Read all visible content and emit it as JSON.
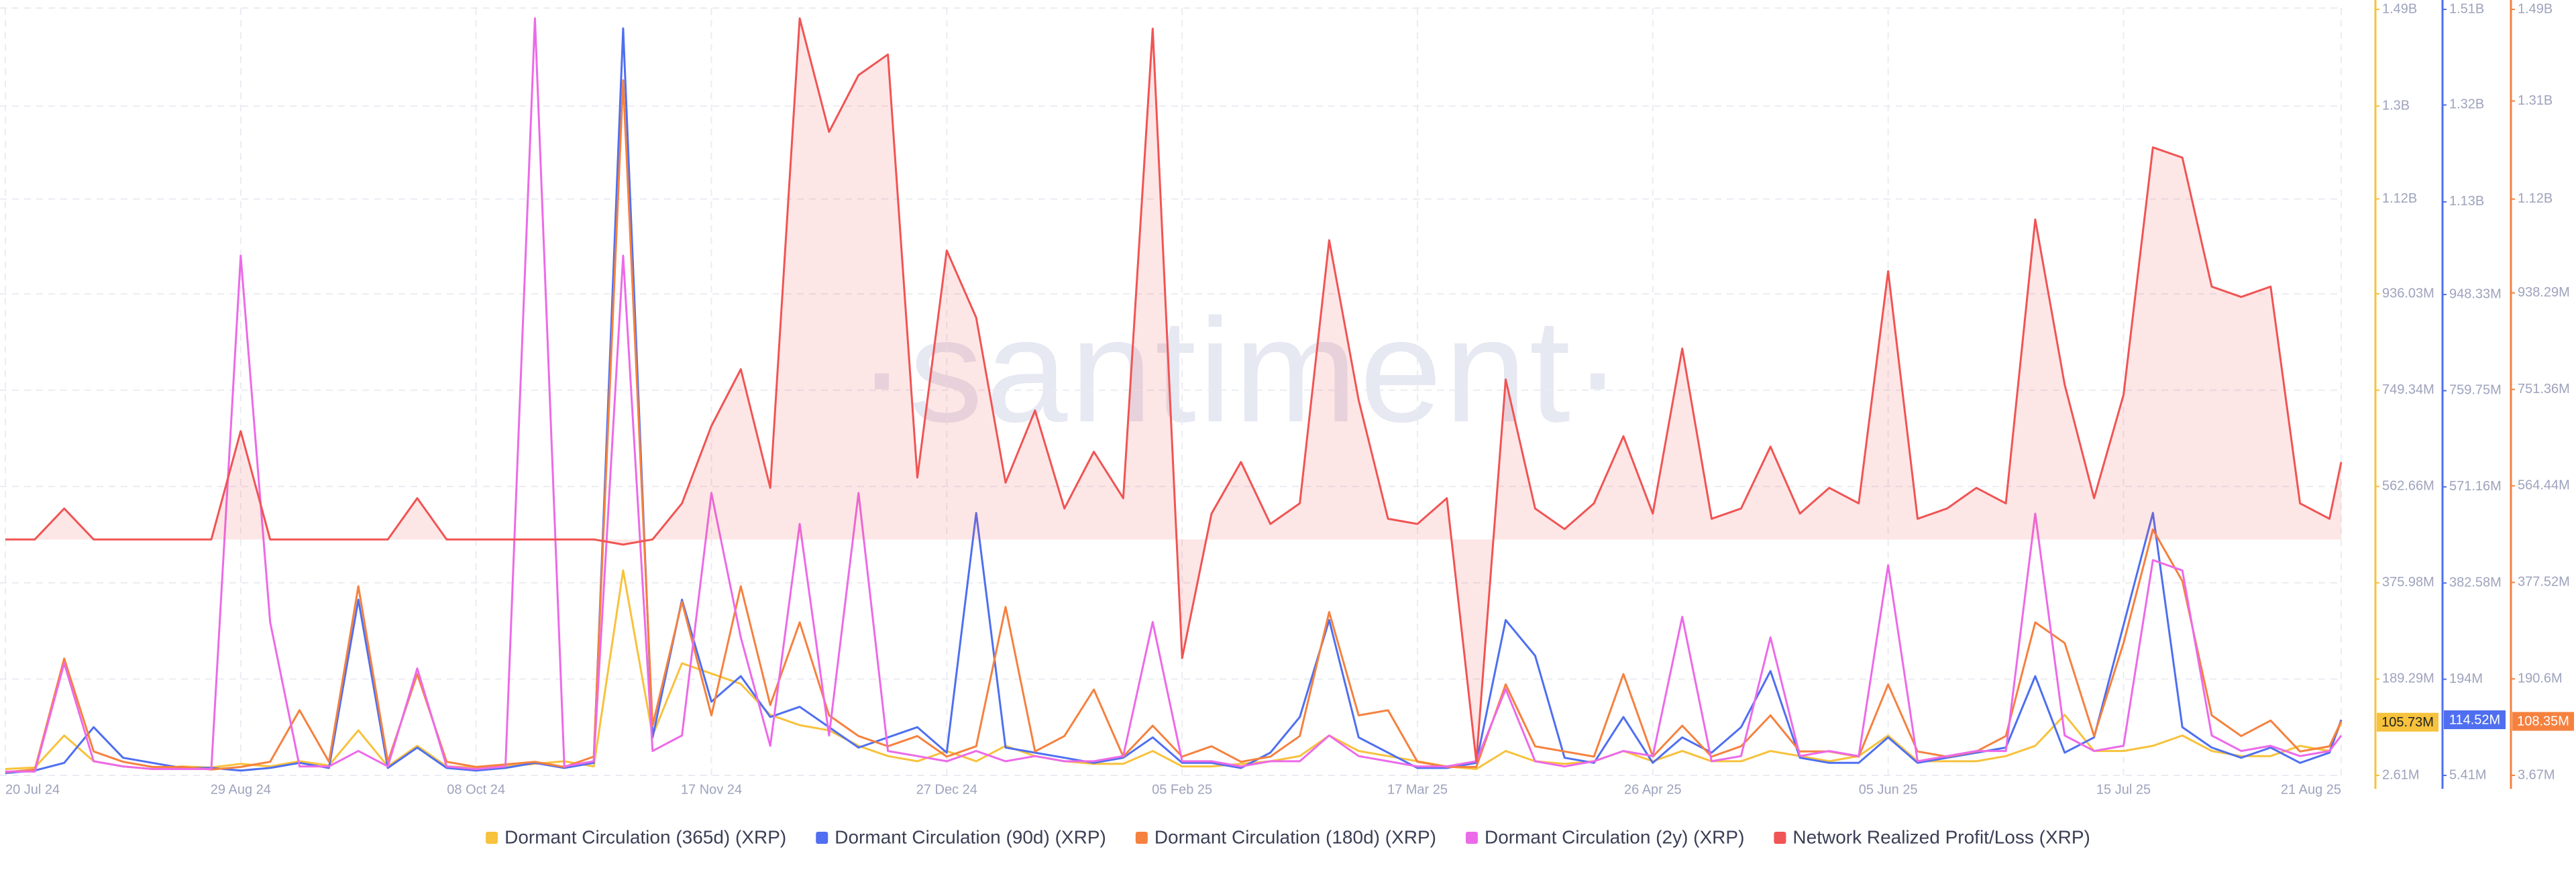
{
  "chart_data": {
    "type": "line",
    "watermark": "·santiment·",
    "grid": true,
    "x": [
      "2024-07-20",
      "2024-07-25",
      "2024-07-30",
      "2024-08-04",
      "2024-08-09",
      "2024-08-14",
      "2024-08-19",
      "2024-08-24",
      "2024-08-29",
      "2024-09-03",
      "2024-09-08",
      "2024-09-13",
      "2024-09-18",
      "2024-09-23",
      "2024-09-28",
      "2024-10-03",
      "2024-10-08",
      "2024-10-13",
      "2024-10-18",
      "2024-10-23",
      "2024-10-28",
      "2024-11-02",
      "2024-11-07",
      "2024-11-12",
      "2024-11-17",
      "2024-11-22",
      "2024-11-27",
      "2024-12-02",
      "2024-12-07",
      "2024-12-12",
      "2024-12-17",
      "2024-12-22",
      "2024-12-27",
      "2025-01-01",
      "2025-01-06",
      "2025-01-11",
      "2025-01-16",
      "2025-01-21",
      "2025-01-26",
      "2025-01-31",
      "2025-02-05",
      "2025-02-10",
      "2025-02-15",
      "2025-02-20",
      "2025-02-25",
      "2025-03-02",
      "2025-03-07",
      "2025-03-12",
      "2025-03-17",
      "2025-03-22",
      "2025-03-27",
      "2025-04-01",
      "2025-04-06",
      "2025-04-11",
      "2025-04-16",
      "2025-04-21",
      "2025-04-26",
      "2025-05-01",
      "2025-05-06",
      "2025-05-11",
      "2025-05-16",
      "2025-05-21",
      "2025-05-26",
      "2025-05-31",
      "2025-06-05",
      "2025-06-10",
      "2025-06-15",
      "2025-06-20",
      "2025-06-25",
      "2025-06-30",
      "2025-07-05",
      "2025-07-10",
      "2025-07-15",
      "2025-07-20",
      "2025-07-25",
      "2025-07-30",
      "2025-08-04",
      "2025-08-09",
      "2025-08-14",
      "2025-08-19",
      "2025-08-21"
    ],
    "xlim": [
      "2024-07-20",
      "2025-08-21"
    ],
    "xticks": [
      {
        "value": "2024-07-20",
        "label": "20 Jul 24"
      },
      {
        "value": "2024-08-29",
        "label": "29 Aug 24"
      },
      {
        "value": "2024-10-08",
        "label": "08 Oct 24"
      },
      {
        "value": "2024-11-17",
        "label": "17 Nov 24"
      },
      {
        "value": "2024-12-27",
        "label": "27 Dec 24"
      },
      {
        "value": "2025-02-05",
        "label": "05 Feb 25"
      },
      {
        "value": "2025-03-17",
        "label": "17 Mar 25"
      },
      {
        "value": "2025-04-26",
        "label": "26 Apr 25"
      },
      {
        "value": "2025-06-05",
        "label": "05 Jun 25"
      },
      {
        "value": "2025-07-15",
        "label": "15 Jul 25"
      },
      {
        "value": "2025-08-21",
        "label": "21 Aug 25"
      }
    ],
    "ylim": [
      2610000,
      1490000000
    ],
    "yticks": [
      {
        "value": 2610000,
        "label": "2.61M"
      },
      {
        "value": 189290000,
        "label": "189.29M"
      },
      {
        "value": 375980000,
        "label": "375.98M"
      },
      {
        "value": 562660000,
        "label": "562.66M"
      },
      {
        "value": 749340000,
        "label": "749.34M"
      },
      {
        "value": 936030000,
        "label": "936.03M"
      },
      {
        "value": 1120000000,
        "label": "1.12B"
      },
      {
        "value": 1300000000,
        "label": "1.3B"
      },
      {
        "value": 1490000000,
        "label": "1.49B"
      }
    ],
    "y2lim": [
      5410000,
      1510000000
    ],
    "y2ticks": [
      {
        "value": 5410000,
        "label": "5.41M"
      },
      {
        "value": 194000000,
        "label": "194M"
      },
      {
        "value": 382580000,
        "label": "382.58M"
      },
      {
        "value": 571160000,
        "label": "571.16M"
      },
      {
        "value": 759750000,
        "label": "759.75M"
      },
      {
        "value": 948330000,
        "label": "948.33M"
      },
      {
        "value": 1130000000,
        "label": "1.13B"
      },
      {
        "value": 1320000000,
        "label": "1.32B"
      },
      {
        "value": 1510000000,
        "label": "1.51B"
      }
    ],
    "y3lim": [
      3670000,
      1490000000
    ],
    "y3ticks": [
      {
        "value": 3670000,
        "label": "3.67M"
      },
      {
        "value": 190600000,
        "label": "190.6M"
      },
      {
        "value": 377520000,
        "label": "377.52M"
      },
      {
        "value": 564440000,
        "label": "564.44M"
      },
      {
        "value": 751360000,
        "label": "751.36M"
      },
      {
        "value": 938290000,
        "label": "938.29M"
      },
      {
        "value": 1120000000,
        "label": "1.12B"
      },
      {
        "value": 1310000000,
        "label": "1.31B"
      },
      {
        "value": 1490000000,
        "label": "1.49B"
      }
    ],
    "series": [
      {
        "name": "Dormant Circulation (365d) (XRP)",
        "color": "#f7c23c",
        "axis": "y",
        "last_value_label": "105.73M",
        "values": [
          15000000.0,
          18000000.0,
          80000000.0,
          30000000.0,
          20000000.0,
          15000000.0,
          20000000.0,
          18000000.0,
          25000000.0,
          20000000.0,
          30000000.0,
          22000000.0,
          90000000.0,
          20000000.0,
          60000000.0,
          20000000.0,
          18000000.0,
          20000000.0,
          25000000.0,
          30000000.0,
          20000000.0,
          400000000.0,
          80000000.0,
          220000000.0,
          200000000.0,
          180000000.0,
          120000000.0,
          100000000.0,
          90000000.0,
          60000000.0,
          40000000.0,
          30000000.0,
          50000000.0,
          30000000.0,
          60000000.0,
          40000000.0,
          30000000.0,
          25000000.0,
          25000000.0,
          50000000.0,
          20000000.0,
          20000000.0,
          25000000.0,
          30000000.0,
          40000000.0,
          80000000.0,
          50000000.0,
          40000000.0,
          30000000.0,
          20000000.0,
          15000000.0,
          50000000.0,
          30000000.0,
          25000000.0,
          30000000.0,
          50000000.0,
          30000000.0,
          50000000.0,
          30000000.0,
          30000000.0,
          50000000.0,
          40000000.0,
          30000000.0,
          40000000.0,
          80000000.0,
          30000000.0,
          30000000.0,
          30000000.0,
          40000000.0,
          60000000.0,
          120000000.0,
          50000000.0,
          50000000.0,
          60000000.0,
          80000000.0,
          50000000.0,
          40000000.0,
          40000000.0,
          60000000.0,
          50000000.0,
          105730000.0
        ]
      },
      {
        "name": "Dormant Circulation (90d) (XRP)",
        "color": "#4f6ff0",
        "axis": "y2",
        "last_value_label": "114.52M",
        "values": [
          10000000.0,
          15000000.0,
          30000000.0,
          100000000.0,
          40000000.0,
          30000000.0,
          20000000.0,
          20000000.0,
          15000000.0,
          20000000.0,
          30000000.0,
          20000000.0,
          350000000.0,
          20000000.0,
          60000000.0,
          20000000.0,
          15000000.0,
          20000000.0,
          30000000.0,
          20000000.0,
          30000000.0,
          1470000000.0,
          80000000.0,
          350000000.0,
          150000000.0,
          200000000.0,
          120000000.0,
          140000000.0,
          100000000.0,
          60000000.0,
          80000000.0,
          100000000.0,
          50000000.0,
          520000000.0,
          60000000.0,
          50000000.0,
          40000000.0,
          30000000.0,
          40000000.0,
          80000000.0,
          30000000.0,
          30000000.0,
          20000000.0,
          50000000.0,
          120000000.0,
          310000000.0,
          80000000.0,
          50000000.0,
          20000000.0,
          20000000.0,
          30000000.0,
          310000000.0,
          240000000.0,
          40000000.0,
          30000000.0,
          120000000.0,
          30000000.0,
          80000000.0,
          50000000.0,
          100000000.0,
          210000000.0,
          40000000.0,
          30000000.0,
          30000000.0,
          80000000.0,
          30000000.0,
          40000000.0,
          50000000.0,
          60000000.0,
          200000000.0,
          50000000.0,
          80000000.0,
          300000000.0,
          520000000.0,
          100000000.0,
          60000000.0,
          40000000.0,
          60000000.0,
          30000000.0,
          50000000.0,
          114520000.0
        ]
      },
      {
        "name": "Dormant Circulation (180d) (XRP)",
        "color": "#f5813f",
        "axis": "y3",
        "last_value_label": "108.35M",
        "values": [
          10000000.0,
          15000000.0,
          230000000.0,
          50000000.0,
          30000000.0,
          20000000.0,
          20000000.0,
          15000000.0,
          20000000.0,
          30000000.0,
          130000000.0,
          30000000.0,
          370000000.0,
          30000000.0,
          200000000.0,
          30000000.0,
          20000000.0,
          25000000.0,
          30000000.0,
          20000000.0,
          40000000.0,
          1350000000.0,
          100000000.0,
          340000000.0,
          120000000.0,
          370000000.0,
          140000000.0,
          300000000.0,
          120000000.0,
          80000000.0,
          60000000.0,
          80000000.0,
          40000000.0,
          60000000.0,
          330000000.0,
          50000000.0,
          80000000.0,
          170000000.0,
          40000000.0,
          100000000.0,
          40000000.0,
          60000000.0,
          30000000.0,
          40000000.0,
          80000000.0,
          320000000.0,
          120000000.0,
          130000000.0,
          30000000.0,
          20000000.0,
          20000000.0,
          180000000.0,
          60000000.0,
          50000000.0,
          40000000.0,
          200000000.0,
          40000000.0,
          100000000.0,
          40000000.0,
          60000000.0,
          120000000.0,
          50000000.0,
          50000000.0,
          40000000.0,
          180000000.0,
          50000000.0,
          40000000.0,
          50000000.0,
          80000000.0,
          300000000.0,
          260000000.0,
          80000000.0,
          260000000.0,
          480000000.0,
          380000000.0,
          120000000.0,
          80000000.0,
          110000000.0,
          50000000.0,
          60000000.0,
          108350000.0
        ]
      },
      {
        "name": "Dormant Circulation (2y) (XRP)",
        "color": "#ec6ae8",
        "axis": "y",
        "values": [
          10000000.0,
          10000000.0,
          220000000.0,
          30000000.0,
          20000000.0,
          15000000.0,
          15000000.0,
          15000000.0,
          1010000000.0,
          300000000.0,
          20000000.0,
          20000000.0,
          50000000.0,
          20000000.0,
          210000000.0,
          20000000.0,
          15000000.0,
          20000000.0,
          1470000000.0,
          20000000.0,
          30000000.0,
          1010000000.0,
          50000000.0,
          80000000.0,
          550000000.0,
          270000000.0,
          60000000.0,
          490000000.0,
          80000000.0,
          550000000.0,
          50000000.0,
          40000000.0,
          30000000.0,
          50000000.0,
          30000000.0,
          40000000.0,
          30000000.0,
          30000000.0,
          40000000.0,
          300000000.0,
          30000000.0,
          30000000.0,
          20000000.0,
          30000000.0,
          30000000.0,
          80000000.0,
          40000000.0,
          30000000.0,
          20000000.0,
          20000000.0,
          30000000.0,
          170000000.0,
          30000000.0,
          20000000.0,
          30000000.0,
          50000000.0,
          40000000.0,
          310000000.0,
          30000000.0,
          40000000.0,
          270000000.0,
          40000000.0,
          50000000.0,
          40000000.0,
          410000000.0,
          30000000.0,
          40000000.0,
          50000000.0,
          50000000.0,
          510000000.0,
          80000000.0,
          50000000.0,
          60000000.0,
          420000000.0,
          400000000.0,
          80000000.0,
          50000000.0,
          60000000.0,
          40000000.0,
          50000000.0,
          80000000.0
        ]
      },
      {
        "name": "Network Realized Profit/Loss (XRP)",
        "color": "#f05454",
        "axis": "y",
        "area": true,
        "values": [
          460000000.0,
          460000000.0,
          520000000.0,
          460000000.0,
          460000000.0,
          460000000.0,
          460000000.0,
          460000000.0,
          670000000.0,
          460000000.0,
          460000000.0,
          460000000.0,
          460000000.0,
          460000000.0,
          540000000.0,
          460000000.0,
          460000000.0,
          460000000.0,
          460000000.0,
          460000000.0,
          460000000.0,
          450000000.0,
          460000000.0,
          530000000.0,
          680000000.0,
          790000000.0,
          560000000.0,
          1470000000.0,
          1250000000.0,
          1360000000.0,
          1400000000.0,
          580000000.0,
          1020000000.0,
          890000000.0,
          570000000.0,
          710000000.0,
          520000000.0,
          630000000.0,
          540000000.0,
          1450000000.0,
          230000000.0,
          510000000.0,
          610000000.0,
          490000000.0,
          530000000.0,
          1040000000.0,
          730000000.0,
          500000000.0,
          490000000.0,
          540000000.0,
          30000000.0,
          770000000.0,
          520000000.0,
          480000000.0,
          530000000.0,
          660000000.0,
          510000000.0,
          830000000.0,
          500000000.0,
          520000000.0,
          640000000.0,
          510000000.0,
          560000000.0,
          530000000.0,
          980000000.0,
          500000000.0,
          520000000.0,
          560000000.0,
          530000000.0,
          1080000000.0,
          760000000.0,
          540000000.0,
          740000000.0,
          1220000000.0,
          1200000000.0,
          950000000.0,
          930000000.0,
          950000000.0,
          530000000.0,
          500000000.0,
          610000000.0
        ]
      }
    ]
  }
}
